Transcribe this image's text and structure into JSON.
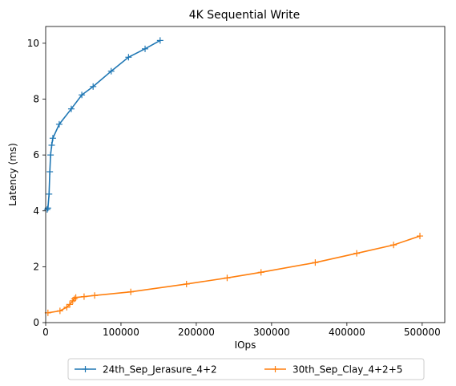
{
  "chart_data": {
    "type": "line",
    "title": "4K  Sequential Write",
    "xlabel": "IOps",
    "ylabel": "Latency (ms)",
    "xlim": [
      0,
      530000
    ],
    "ylim": [
      0,
      10.6
    ],
    "x_ticks": [
      0,
      100000,
      200000,
      300000,
      400000,
      500000
    ],
    "x_tick_labels": [
      "0",
      "100000",
      "200000",
      "300000",
      "400000",
      "500000"
    ],
    "y_ticks": [
      0,
      2,
      4,
      6,
      8,
      10
    ],
    "y_tick_labels": [
      "0",
      "2",
      "4",
      "6",
      "8",
      "10"
    ],
    "grid": false,
    "legend_position": "bottom-center-outside",
    "series": [
      {
        "name": "24th_Sep_Jerasure_4+2",
        "color": "#1f77b4",
        "marker": "+",
        "x": [
          2000,
          3000,
          4500,
          5500,
          6500,
          8000,
          9500,
          18000,
          34000,
          48000,
          63000,
          87000,
          110000,
          132000,
          152000
        ],
        "y": [
          4.05,
          4.1,
          4.6,
          5.4,
          6.0,
          6.35,
          6.6,
          7.1,
          7.65,
          8.15,
          8.45,
          9.0,
          9.5,
          9.8,
          10.1
        ]
      },
      {
        "name": "30th_Sep_Clay_4+2+5",
        "color": "#ff7f0e",
        "marker": "+",
        "x": [
          3000,
          19000,
          28000,
          32000,
          36000,
          38000,
          40000,
          51000,
          65000,
          113000,
          187000,
          241000,
          286000,
          358000,
          413000,
          462000,
          497000
        ],
        "y": [
          0.35,
          0.42,
          0.55,
          0.65,
          0.78,
          0.85,
          0.9,
          0.93,
          0.97,
          1.1,
          1.38,
          1.6,
          1.8,
          2.15,
          2.48,
          2.78,
          3.1
        ]
      }
    ]
  }
}
